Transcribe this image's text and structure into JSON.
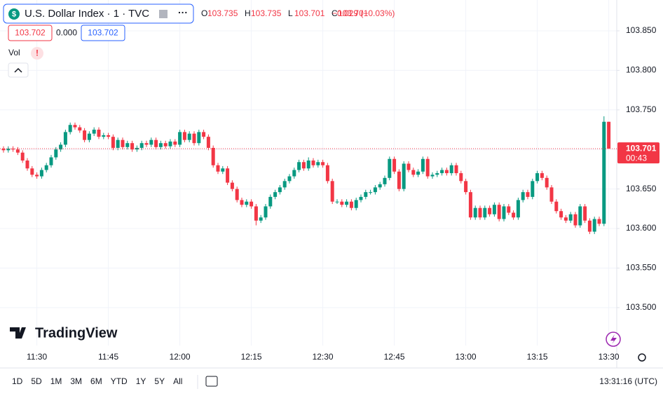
{
  "header": {
    "symbol": "U.S. Dollar Index · 1 · TVC",
    "ohlc": [
      {
        "label": "O",
        "value": "103.735"
      },
      {
        "label": "H",
        "value": "103.735"
      },
      {
        "label": "L",
        "value": "103.701"
      },
      {
        "label": "C",
        "value": "103.701"
      }
    ],
    "change": "−0.029 (−0.03%)",
    "bid": "103.702",
    "spread": "0.000",
    "ask": "103.702",
    "vol": "Vol",
    "vol_alert": "!"
  },
  "logo": "TradingView",
  "ranges": [
    "1D",
    "5D",
    "1M",
    "3M",
    "6M",
    "YTD",
    "1Y",
    "5Y",
    "All"
  ],
  "clock": "13:31:16 (UTC)",
  "chart_data": {
    "type": "candlestick",
    "up_color": "#089981",
    "down_color": "#f23645",
    "categories": [
      null,
      null,
      null,
      null,
      null,
      null,
      null,
      "11:30",
      null,
      null,
      null,
      null,
      null,
      null,
      null,
      null,
      null,
      null,
      null,
      null,
      null,
      null,
      "11:45",
      null,
      null,
      null,
      null,
      null,
      null,
      null,
      null,
      null,
      null,
      null,
      null,
      null,
      null,
      "12:00",
      null,
      null,
      null,
      null,
      null,
      null,
      null,
      null,
      null,
      null,
      null,
      null,
      null,
      null,
      "12:15",
      null,
      null,
      null,
      null,
      null,
      null,
      null,
      null,
      null,
      null,
      null,
      null,
      null,
      null,
      "12:30",
      null,
      null,
      null,
      null,
      null,
      null,
      null,
      null,
      null,
      null,
      null,
      null,
      null,
      null,
      "12:45",
      null,
      null,
      null,
      null,
      null,
      null,
      null,
      null,
      null,
      null,
      null,
      null,
      null,
      null,
      "13:00",
      null,
      null,
      null,
      null,
      null,
      null,
      null,
      null,
      null,
      null,
      null,
      null,
      null,
      null,
      "13:15",
      null,
      null,
      null,
      null,
      null,
      null,
      null,
      null,
      null,
      null,
      null,
      null,
      null,
      null,
      "13:30"
    ],
    "open": [
      103.701,
      103.699,
      103.701,
      103.7,
      103.696,
      103.686,
      103.676,
      103.668,
      103.666,
      103.674,
      103.68,
      103.69,
      103.7,
      103.706,
      103.722,
      103.731,
      103.728,
      103.724,
      103.712,
      103.72,
      103.725,
      103.716,
      103.718,
      103.716,
      103.702,
      103.712,
      103.703,
      103.708,
      103.7,
      103.702,
      103.708,
      103.706,
      103.712,
      103.703,
      103.708,
      103.704,
      103.71,
      103.706,
      103.722,
      103.712,
      103.72,
      103.708,
      103.722,
      103.716,
      103.702,
      103.68,
      103.672,
      103.676,
      103.658,
      103.65,
      103.636,
      103.63,
      103.634,
      103.628,
      103.61,
      103.614,
      103.628,
      103.64,
      103.646,
      103.652,
      103.66,
      103.666,
      103.674,
      103.684,
      103.676,
      103.686,
      103.68,
      103.684,
      103.68,
      103.66,
      103.634,
      103.634,
      103.63,
      103.634,
      103.626,
      103.636,
      103.64,
      103.646,
      103.646,
      103.652,
      103.656,
      103.664,
      103.688,
      103.672,
      103.65,
      103.682,
      103.674,
      103.668,
      103.672,
      103.688,
      103.666,
      103.668,
      103.67,
      103.674,
      103.67,
      103.68,
      103.67,
      103.66,
      103.646,
      103.614,
      103.626,
      103.614,
      103.626,
      103.618,
      103.63,
      103.612,
      103.628,
      103.62,
      103.614,
      103.636,
      103.646,
      103.64,
      103.66,
      103.67,
      103.664,
      103.652,
      103.634,
      103.622,
      103.614,
      103.61,
      103.618,
      103.604,
      103.628,
      103.61,
      103.596,
      103.612,
      103.606,
      103.735
    ],
    "high": [
      103.704,
      103.704,
      103.704,
      103.703,
      103.699,
      103.689,
      103.679,
      103.671,
      103.677,
      103.683,
      103.693,
      103.703,
      103.709,
      103.725,
      103.734,
      103.734,
      103.731,
      103.727,
      103.723,
      103.728,
      103.728,
      103.721,
      103.721,
      103.719,
      103.715,
      103.715,
      103.711,
      103.711,
      103.705,
      103.711,
      103.711,
      103.715,
      103.715,
      103.711,
      103.711,
      103.713,
      103.713,
      103.725,
      103.725,
      103.723,
      103.723,
      103.725,
      103.725,
      103.719,
      103.705,
      103.683,
      103.679,
      103.679,
      103.661,
      103.653,
      103.639,
      103.637,
      103.637,
      103.631,
      103.617,
      103.631,
      103.643,
      103.649,
      103.655,
      103.663,
      103.669,
      103.677,
      103.687,
      103.687,
      103.69,
      103.689,
      103.687,
      103.687,
      103.683,
      103.663,
      103.637,
      103.637,
      103.637,
      103.637,
      103.639,
      103.643,
      103.649,
      103.649,
      103.655,
      103.659,
      103.667,
      103.691,
      103.691,
      103.675,
      103.685,
      103.685,
      103.677,
      103.675,
      103.691,
      103.691,
      103.671,
      103.673,
      103.677,
      103.677,
      103.683,
      103.683,
      103.673,
      103.663,
      103.649,
      103.629,
      103.629,
      103.629,
      103.629,
      103.633,
      103.633,
      103.631,
      103.631,
      103.623,
      103.639,
      103.649,
      103.649,
      103.663,
      103.673,
      103.673,
      103.667,
      103.655,
      103.637,
      103.625,
      103.617,
      103.621,
      103.621,
      103.631,
      103.631,
      103.613,
      103.615,
      103.615,
      103.742,
      103.735
    ],
    "low": [
      103.696,
      103.696,
      103.697,
      103.693,
      103.683,
      103.673,
      103.665,
      103.663,
      103.663,
      103.671,
      103.677,
      103.687,
      103.697,
      103.703,
      103.719,
      103.725,
      103.721,
      103.709,
      103.709,
      103.717,
      103.713,
      103.713,
      103.713,
      103.699,
      103.699,
      103.7,
      103.7,
      103.697,
      103.697,
      103.699,
      103.703,
      103.703,
      103.7,
      103.7,
      103.701,
      103.701,
      103.703,
      103.703,
      103.709,
      103.709,
      103.705,
      103.705,
      103.713,
      103.699,
      103.677,
      103.669,
      103.669,
      103.655,
      103.647,
      103.633,
      103.627,
      103.627,
      103.625,
      103.604,
      103.607,
      103.611,
      103.625,
      103.637,
      103.643,
      103.649,
      103.657,
      103.663,
      103.671,
      103.673,
      103.673,
      103.677,
      103.677,
      103.677,
      103.657,
      103.631,
      103.631,
      103.627,
      103.627,
      103.623,
      103.623,
      103.633,
      103.637,
      103.643,
      103.643,
      103.649,
      103.653,
      103.661,
      103.669,
      103.647,
      103.647,
      103.671,
      103.665,
      103.665,
      103.669,
      103.663,
      103.663,
      103.665,
      103.667,
      103.667,
      103.667,
      103.667,
      103.657,
      103.643,
      103.611,
      103.611,
      103.611,
      103.611,
      103.615,
      103.615,
      103.609,
      103.609,
      103.617,
      103.611,
      103.611,
      103.633,
      103.637,
      103.637,
      103.657,
      103.661,
      103.649,
      103.631,
      103.619,
      103.611,
      103.607,
      103.607,
      103.601,
      103.601,
      103.607,
      103.593,
      103.593,
      103.603,
      103.603,
      103.701
    ],
    "close": [
      103.699,
      103.701,
      103.7,
      103.696,
      103.686,
      103.676,
      103.668,
      103.666,
      103.674,
      103.68,
      103.69,
      103.7,
      103.706,
      103.722,
      103.731,
      103.728,
      103.724,
      103.712,
      103.72,
      103.725,
      103.716,
      103.718,
      103.716,
      103.702,
      103.712,
      103.703,
      103.708,
      103.7,
      103.702,
      103.708,
      103.706,
      103.712,
      103.703,
      103.708,
      103.704,
      103.71,
      103.706,
      103.722,
      103.712,
      103.72,
      103.708,
      103.722,
      103.716,
      103.702,
      103.68,
      103.672,
      103.676,
      103.658,
      103.65,
      103.636,
      103.63,
      103.634,
      103.628,
      103.61,
      103.614,
      103.628,
      103.64,
      103.646,
      103.652,
      103.66,
      103.666,
      103.674,
      103.684,
      103.676,
      103.686,
      103.68,
      103.684,
      103.68,
      103.66,
      103.634,
      103.634,
      103.63,
      103.634,
      103.626,
      103.636,
      103.64,
      103.646,
      103.646,
      103.652,
      103.656,
      103.664,
      103.688,
      103.672,
      103.65,
      103.682,
      103.674,
      103.668,
      103.672,
      103.688,
      103.666,
      103.668,
      103.67,
      103.674,
      103.67,
      103.68,
      103.67,
      103.66,
      103.646,
      103.614,
      103.626,
      103.614,
      103.626,
      103.618,
      103.63,
      103.612,
      103.628,
      103.62,
      103.614,
      103.636,
      103.646,
      103.64,
      103.66,
      103.67,
      103.664,
      103.652,
      103.634,
      103.622,
      103.614,
      103.61,
      103.618,
      103.604,
      103.628,
      103.61,
      103.596,
      103.612,
      103.606,
      103.735,
      103.701
    ],
    "ylim": [
      103.452,
      103.889
    ],
    "yticks": [
      {
        "value": 103.5,
        "label": "103.500"
      },
      {
        "value": 103.55,
        "label": "103.550"
      },
      {
        "value": 103.6,
        "label": "103.600"
      },
      {
        "value": 103.65,
        "label": "103.650"
      },
      {
        "value": 103.7,
        "label": "103.700"
      },
      {
        "value": 103.75,
        "label": "103.750"
      },
      {
        "value": 103.8,
        "label": "103.800"
      },
      {
        "value": 103.85,
        "label": "103.850"
      }
    ],
    "grid": true,
    "last_price": {
      "value": 103.701,
      "label": "103.701"
    },
    "countdown": "00:43"
  }
}
